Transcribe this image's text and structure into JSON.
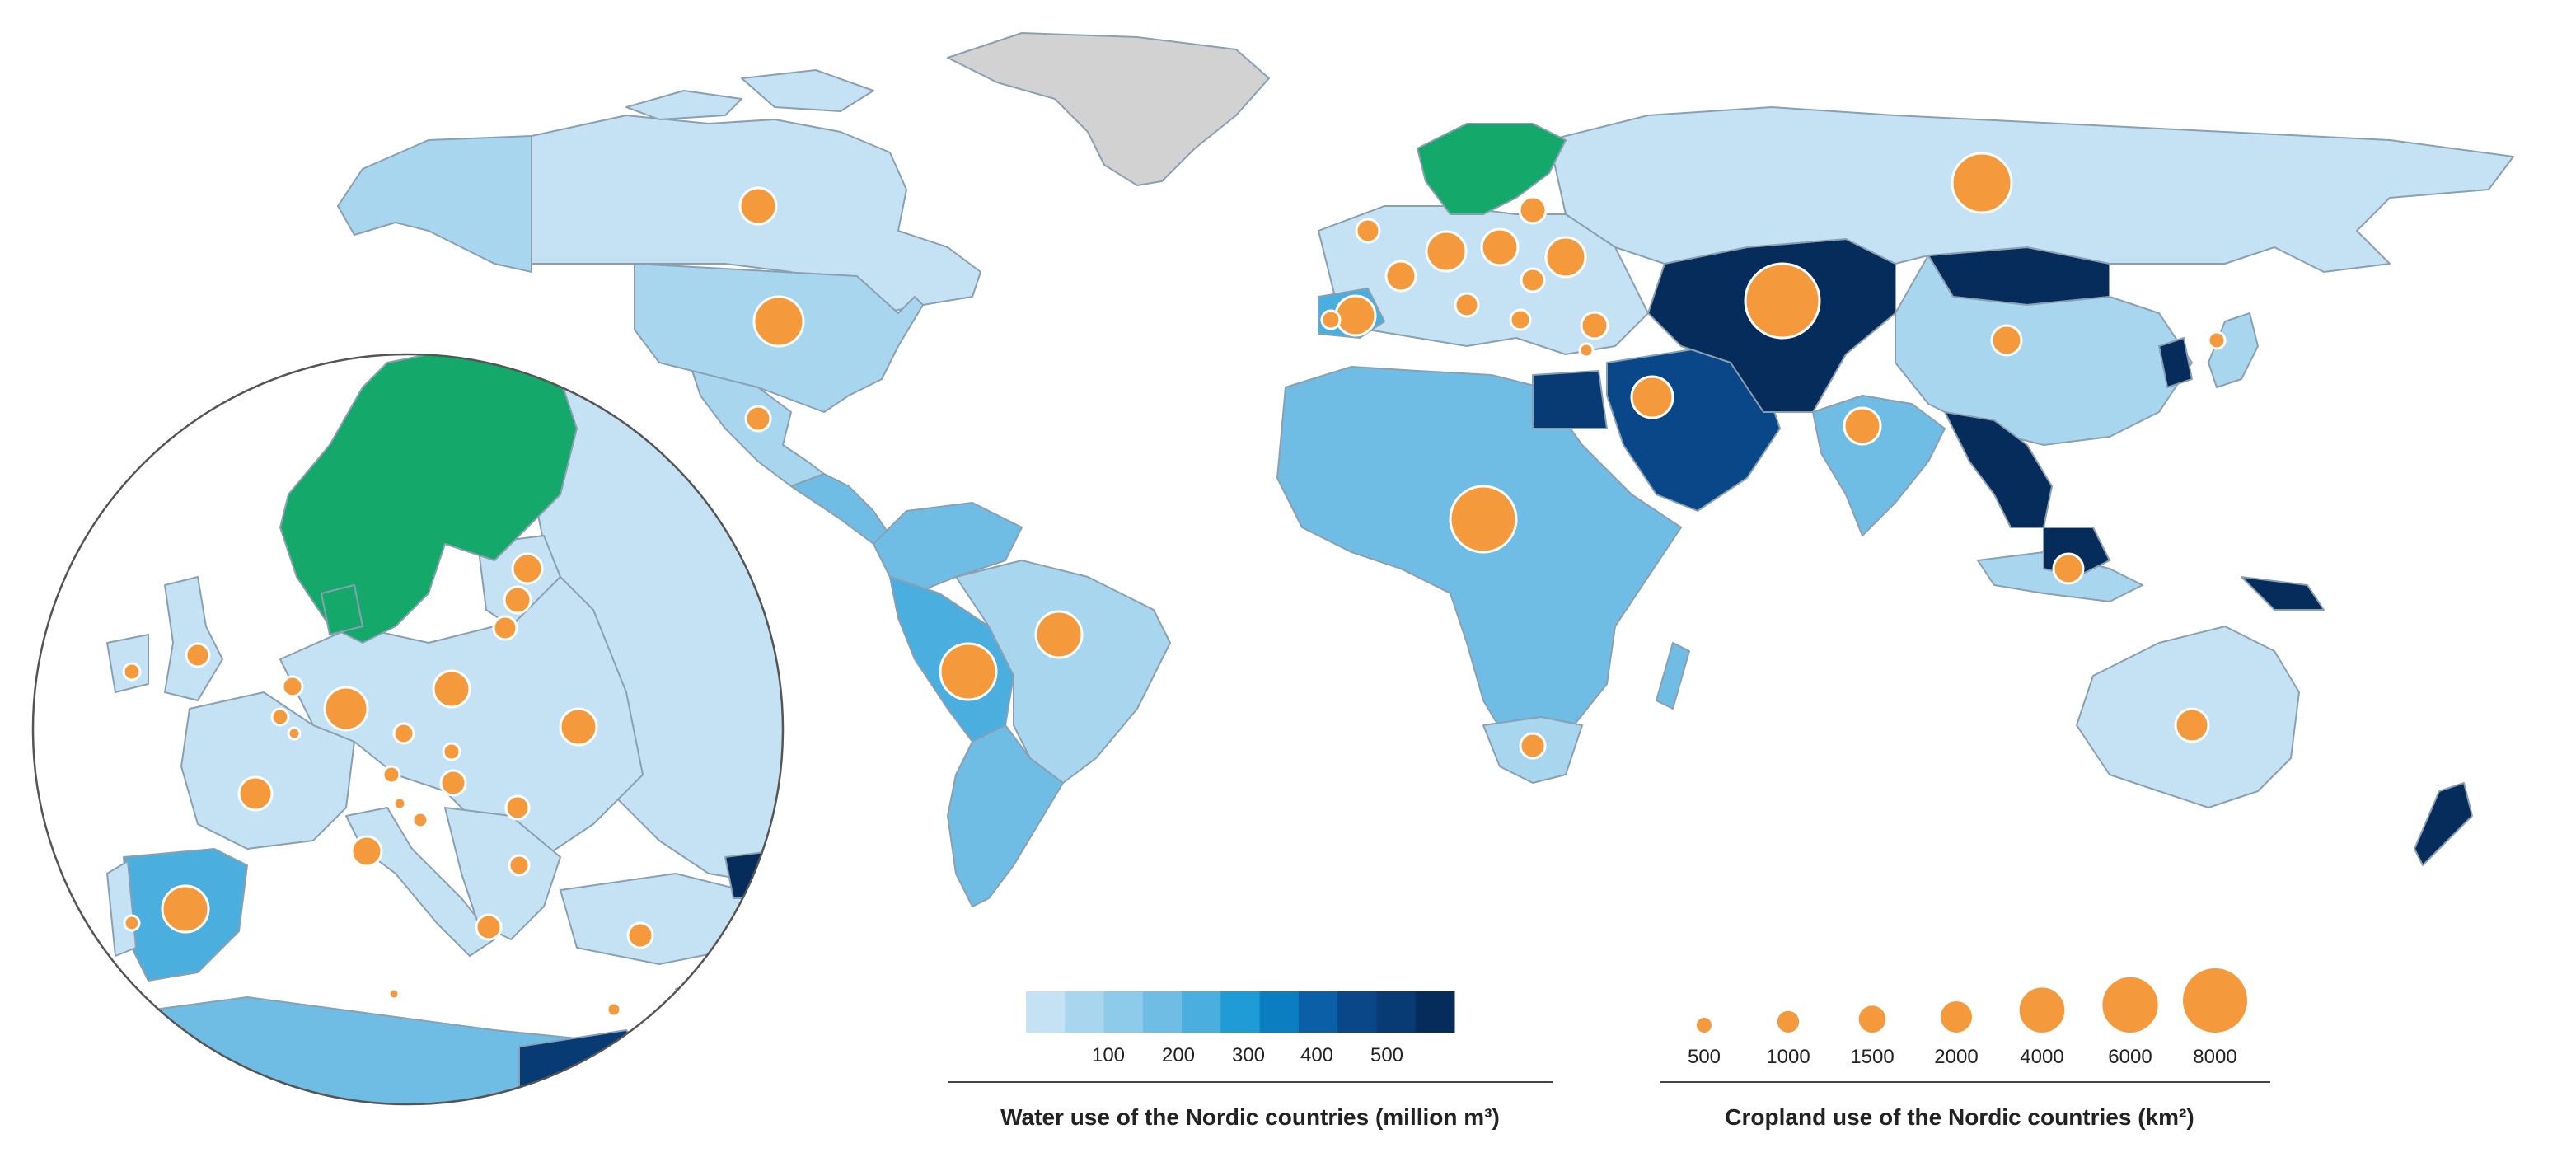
{
  "colors": {
    "nordic": "#14a86b",
    "no_data": "#d2d2d2",
    "ocean": "#ffffff",
    "border": "#8aa0b2",
    "bubble": "#f59a3c",
    "bubble_stroke": "#ffffff",
    "water_scale": [
      "#c4e2f3",
      "#a9d6ef",
      "#8ecbea",
      "#6fbde4",
      "#4aaede",
      "#1f9bd5",
      "#0b7ec2",
      "#0b5fa6",
      "#0a4788",
      "#083a73",
      "#062c5c"
    ]
  },
  "water_legend": {
    "title": "Water use of the Nordic countries (million m³)",
    "ticks": [
      "100",
      "200",
      "300",
      "400",
      "500"
    ]
  },
  "cropland_legend": {
    "title": "Cropland use of the Nordic countries (km²)",
    "sizes": [
      {
        "value": 500,
        "label": "500"
      },
      {
        "value": 1000,
        "label": "1000"
      },
      {
        "value": 1500,
        "label": "1500"
      },
      {
        "value": 2000,
        "label": "2000"
      },
      {
        "value": 4000,
        "label": "4000"
      },
      {
        "value": 6000,
        "label": "6000"
      },
      {
        "value": 8000,
        "label": "8000"
      }
    ]
  },
  "map": {
    "inset": "Europe",
    "highlighted_region": "Nordic countries"
  }
}
